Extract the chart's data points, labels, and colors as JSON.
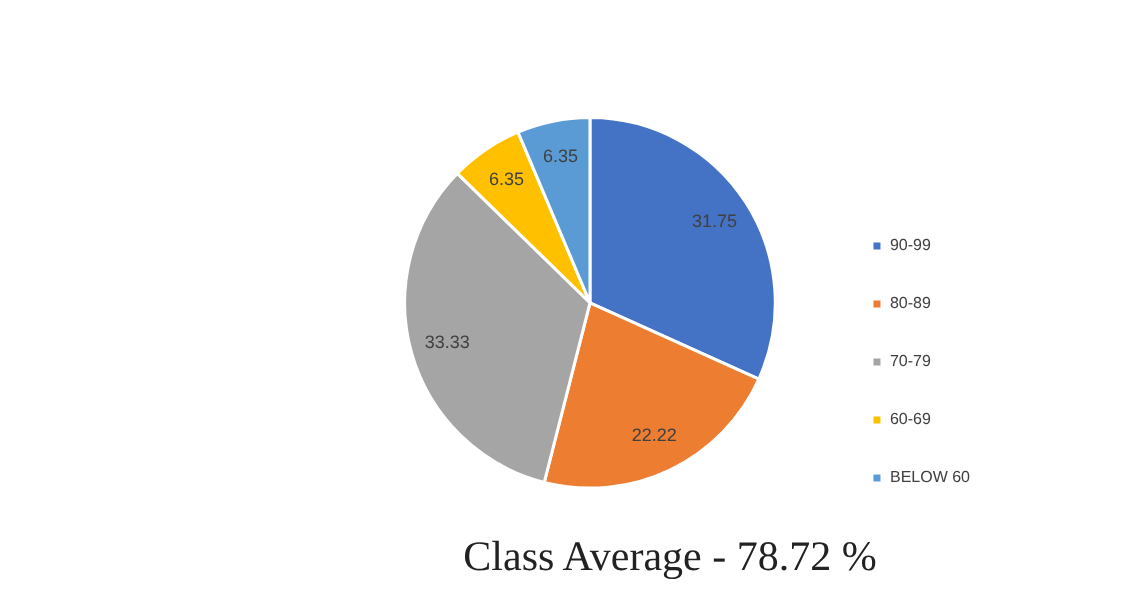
{
  "chart_data": {
    "type": "pie",
    "title": "Class Average - 78.72 %",
    "categories": [
      "90-99",
      "80-89",
      "70-79",
      "60-69",
      "BELOW 60"
    ],
    "values": [
      31.75,
      22.22,
      33.33,
      6.35,
      6.35
    ],
    "colors": [
      "#4472c4",
      "#ed7d31",
      "#a5a5a5",
      "#ffc000",
      "#5b9bd5"
    ],
    "legend": "right",
    "data_labels": true
  }
}
